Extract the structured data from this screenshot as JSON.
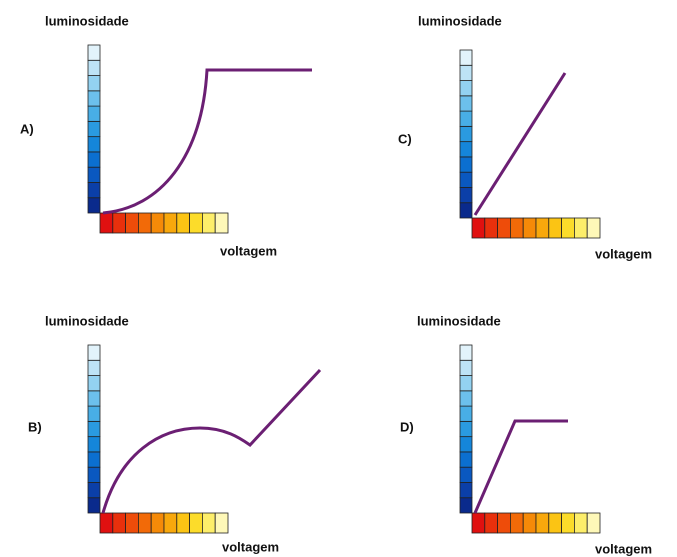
{
  "panels": [
    {
      "label": "A)",
      "y_label": "luminosidade",
      "x_label": "voltagem"
    },
    {
      "label": "B)",
      "y_label": "luminosidade",
      "x_label": "voltagem"
    },
    {
      "label": "C)",
      "y_label": "luminosidade",
      "x_label": "voltagem"
    },
    {
      "label": "D)",
      "y_label": "luminosidade",
      "x_label": "voltagem"
    }
  ]
}
